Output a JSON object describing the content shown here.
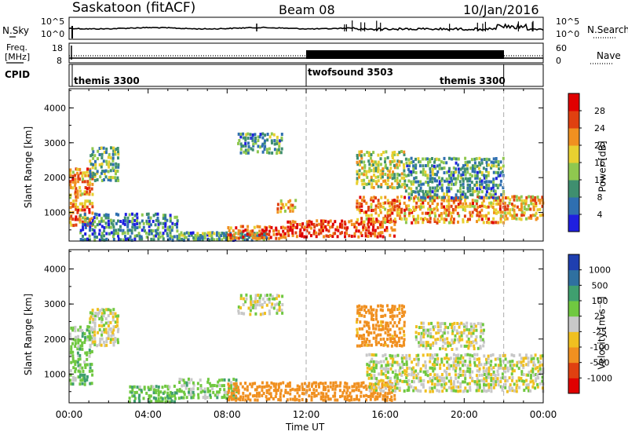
{
  "header": {
    "station": "Saskatoon (fitACF)",
    "beam": "Beam 08",
    "date": "10/Jan/2016"
  },
  "nsky_panel": {
    "left_label": "N.Sky",
    "left_ticks": [
      "10^5",
      "10^0"
    ],
    "right_label": "N.Search",
    "right_ticks": [
      "10^5",
      "10^0"
    ]
  },
  "freq_panel": {
    "left_label_line1": "Freq.",
    "left_label_line2": "[MHz]",
    "left_ticks": [
      "18",
      "8"
    ],
    "right_label": "Nave",
    "right_ticks": [
      "60",
      "0"
    ],
    "cpid_label": "CPID"
  },
  "cpid_segments": [
    {
      "name": "themis 3300",
      "start_hour": 0,
      "end_hour": 12
    },
    {
      "name": "twofsound 3503",
      "start_hour": 12,
      "end_hour": 22
    },
    {
      "name": "themis 3300",
      "start_hour": 22,
      "end_hour": 24
    }
  ],
  "x_axis": {
    "label": "Time UT",
    "ticks": [
      "00:00",
      "04:00",
      "08:00",
      "12:00",
      "16:00",
      "20:00",
      "00:00"
    ]
  },
  "power_panel": {
    "ylabel": "Slant Range [km]",
    "yticks": [
      "1000",
      "2000",
      "3000",
      "4000"
    ],
    "colorbar_label": "Power [dB]",
    "colorbar_ticks": [
      "4",
      "8",
      "12",
      "16",
      "20",
      "24",
      "28"
    ],
    "colorbar_colors": [
      "#1f1fe0",
      "#2f6fb0",
      "#3f8f6f",
      "#8fc84f",
      "#e8d030",
      "#f09020",
      "#e04010",
      "#e00000"
    ]
  },
  "velocity_panel": {
    "ylabel": "Slant Range [km]",
    "yticks": [
      "1000",
      "2000",
      "3000",
      "4000"
    ],
    "colorbar_label": "Velocity [m s⁻¹]",
    "colorbar_ticks": [
      "1000",
      "500",
      "100",
      "25",
      "-25",
      "-100",
      "-500",
      "-1000"
    ],
    "colorbar_colors": [
      "#1f3fb0",
      "#2f70a0",
      "#3f9f6f",
      "#70c840",
      "#c8c8c8",
      "#f0c020",
      "#f09020",
      "#e04010",
      "#e00000"
    ]
  },
  "chart_data": {
    "type": "heatmap",
    "x_unit": "hour UT",
    "y_unit": "slant range km",
    "xlim": [
      0,
      24
    ],
    "ylim": [
      180,
      4550
    ],
    "power_features": [
      {
        "x0": 0.0,
        "x1": 1.2,
        "r0": 600,
        "r1": 2300,
        "level": 22
      },
      {
        "x0": 1.0,
        "x1": 2.5,
        "r0": 1900,
        "r1": 2900,
        "level": 12
      },
      {
        "x0": 0.5,
        "x1": 5.5,
        "r0": 200,
        "r1": 1000,
        "level": 8
      },
      {
        "x0": 5.5,
        "x1": 10.0,
        "r0": 200,
        "r1": 450,
        "level": 10
      },
      {
        "x0": 8.0,
        "x1": 11.0,
        "r0": 250,
        "r1": 650,
        "level": 26
      },
      {
        "x0": 11.0,
        "x1": 16.5,
        "r0": 300,
        "r1": 800,
        "level": 27
      },
      {
        "x0": 8.5,
        "x1": 10.8,
        "r0": 2700,
        "r1": 3300,
        "level": 10
      },
      {
        "x0": 10.5,
        "x1": 11.5,
        "r0": 1000,
        "r1": 1400,
        "level": 20
      },
      {
        "x0": 14.5,
        "x1": 17.0,
        "r0": 1700,
        "r1": 2800,
        "level": 16
      },
      {
        "x0": 14.5,
        "x1": 22.0,
        "r0": 700,
        "r1": 1500,
        "level": 22
      },
      {
        "x0": 17.0,
        "x1": 22.0,
        "r0": 1400,
        "r1": 2600,
        "level": 10
      },
      {
        "x0": 22.0,
        "x1": 24.0,
        "r0": 800,
        "r1": 1500,
        "level": 20
      }
    ],
    "velocity_features": [
      {
        "x0": 0.0,
        "x1": 1.2,
        "r0": 700,
        "r1": 2400,
        "vel": 60
      },
      {
        "x0": 1.0,
        "x1": 2.5,
        "r0": 1800,
        "r1": 2900,
        "vel": 0
      },
      {
        "x0": 3.0,
        "x1": 5.5,
        "r0": 200,
        "r1": 700,
        "vel": 80
      },
      {
        "x0": 5.5,
        "x1": 8.5,
        "r0": 300,
        "r1": 900,
        "vel": 50
      },
      {
        "x0": 8.0,
        "x1": 16.5,
        "r0": 250,
        "r1": 800,
        "vel": -200
      },
      {
        "x0": 8.5,
        "x1": 10.8,
        "r0": 2700,
        "r1": 3300,
        "vel": 0
      },
      {
        "x0": 14.5,
        "x1": 17.0,
        "r0": 1800,
        "r1": 3000,
        "vel": -150
      },
      {
        "x0": 15.0,
        "x1": 24.0,
        "r0": 500,
        "r1": 1600,
        "vel": 0
      },
      {
        "x0": 17.5,
        "x1": 21.0,
        "r0": 1700,
        "r1": 2500,
        "vel": 0
      }
    ]
  }
}
